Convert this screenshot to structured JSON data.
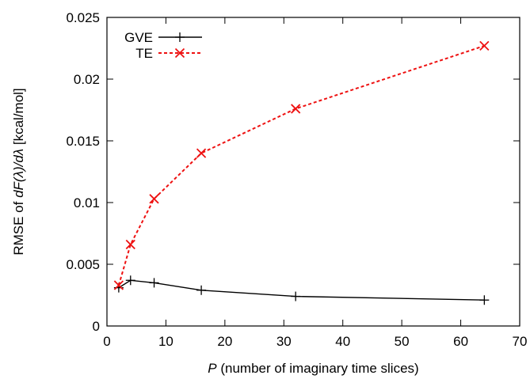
{
  "chart_data": {
    "type": "line",
    "xlabel_var": "P",
    "xlabel_rest": " (number of imaginary time slices)",
    "ylabel_prefix": "RMSE of ",
    "ylabel_math": "dF(λ)/dλ",
    "ylabel_suffix": " [kcal/mol]",
    "xlim": [
      0,
      70
    ],
    "ylim": [
      0,
      0.025
    ],
    "xticks": [
      0,
      10,
      20,
      30,
      40,
      50,
      60,
      70
    ],
    "yticks": [
      0,
      0.005,
      0.01,
      0.015,
      0.02,
      0.025
    ],
    "ytick_labels": [
      "0",
      "0.005",
      "0.01",
      "0.015",
      "0.02",
      "0.025"
    ],
    "legend_position": "top-left",
    "grid": false,
    "series": [
      {
        "name": "GVE",
        "color": "#000000",
        "marker": "plus",
        "line": "solid",
        "x": [
          2,
          4,
          8,
          16,
          32,
          64
        ],
        "y": [
          0.0031,
          0.0037,
          0.0035,
          0.0029,
          0.0024,
          0.0021
        ]
      },
      {
        "name": "TE",
        "color": "#ee1111",
        "marker": "cross",
        "line": "dashed",
        "x": [
          2,
          4,
          8,
          16,
          32,
          64
        ],
        "y": [
          0.0033,
          0.0066,
          0.0103,
          0.014,
          0.0176,
          0.0227
        ]
      }
    ]
  }
}
